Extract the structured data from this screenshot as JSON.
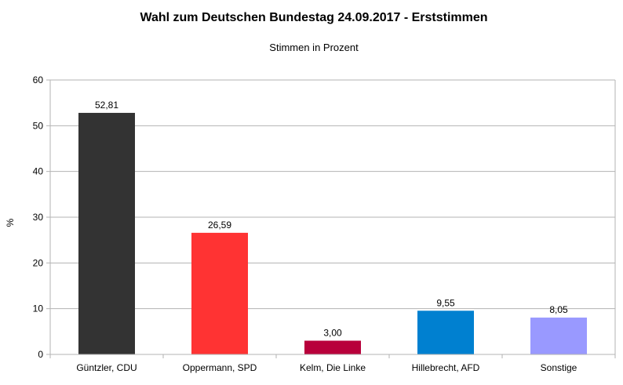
{
  "chart_data": {
    "type": "bar",
    "title": "Wahl zum Deutschen Bundestag 24.09.2017 - Erststimmen",
    "subtitle": "Stimmen in Prozent",
    "xlabel": "",
    "ylabel": "%",
    "ylim": [
      0,
      60
    ],
    "yticks": [
      0,
      10,
      20,
      30,
      40,
      50,
      60
    ],
    "ytick_labels": [
      "0",
      "10",
      "20",
      "30",
      "40",
      "50",
      "60"
    ],
    "grid": true,
    "legend": "none",
    "categories": [
      "Güntzler, CDU",
      "Oppermann, SPD",
      "Kelm, Die Linke",
      "Hillebrecht, AFD",
      "Sonstige"
    ],
    "values": [
      52.81,
      26.59,
      3.0,
      9.55,
      8.05
    ],
    "value_labels": [
      "52,81",
      "26,59",
      "3,00",
      "9,55",
      "8,05"
    ],
    "colors": [
      "#333333",
      "#ff3333",
      "#b8003b",
      "#0080d0",
      "#9999ff"
    ]
  }
}
